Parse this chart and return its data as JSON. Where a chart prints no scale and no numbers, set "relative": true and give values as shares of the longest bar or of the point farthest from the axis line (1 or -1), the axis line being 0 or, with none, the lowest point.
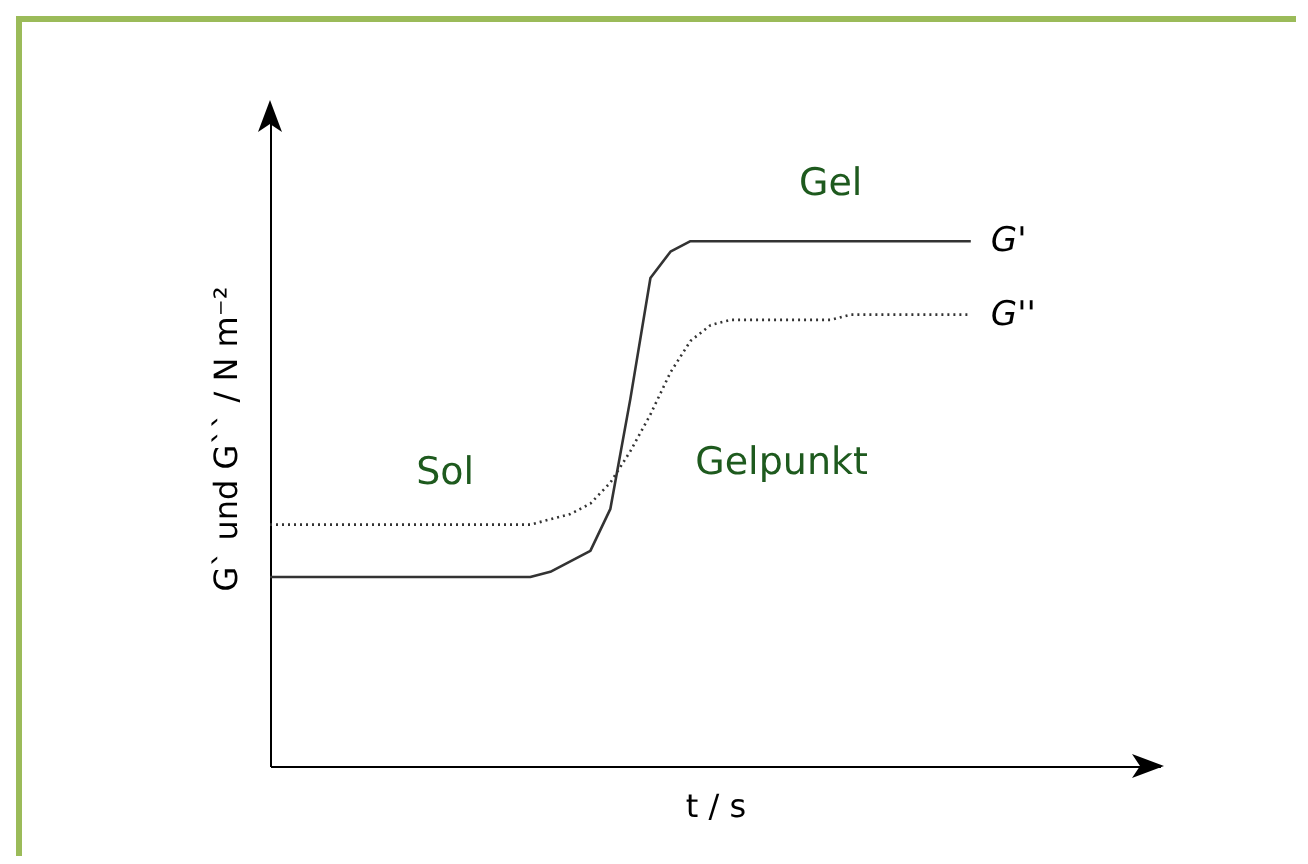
{
  "chart_data": {
    "type": "line",
    "relative": true,
    "xlabel": "t / s",
    "ylabel": "G` und G`` / N m⁻²",
    "categories": [
      null,
      null,
      null,
      null,
      null,
      null,
      null,
      null,
      null,
      null,
      null,
      null,
      null,
      null,
      null,
      null,
      null,
      null,
      null,
      null,
      null,
      null,
      null,
      null,
      null,
      null,
      null,
      null,
      null,
      null,
      null,
      null,
      null,
      null,
      null,
      null
    ],
    "series": [
      {
        "name": "G'",
        "color": "#333333",
        "line_style": "solid",
        "values": [
          0.36,
          0.36,
          0.36,
          0.36,
          0.36,
          0.36,
          0.36,
          0.36,
          0.36,
          0.36,
          0.36,
          0.36,
          0.36,
          0.36,
          0.37,
          0.39,
          0.41,
          0.49,
          0.7,
          0.93,
          0.98,
          1,
          1,
          1,
          1,
          1,
          1,
          1,
          1,
          1,
          1,
          1,
          1,
          1,
          1,
          1
        ]
      },
      {
        "name": "G''",
        "color": "#333333",
        "line_style": "dotted",
        "values": [
          0.46,
          0.46,
          0.46,
          0.46,
          0.46,
          0.46,
          0.46,
          0.46,
          0.46,
          0.46,
          0.46,
          0.46,
          0.46,
          0.46,
          0.47,
          0.48,
          0.5,
          0.54,
          0.6,
          0.67,
          0.75,
          0.81,
          0.84,
          0.85,
          0.85,
          0.85,
          0.85,
          0.85,
          0.85,
          0.86,
          0.86,
          0.86,
          0.86,
          0.86,
          0.86,
          0.86
        ]
      }
    ],
    "annotations": [
      "Sol",
      "Gel",
      "Gelpunkt"
    ],
    "legend": false
  }
}
